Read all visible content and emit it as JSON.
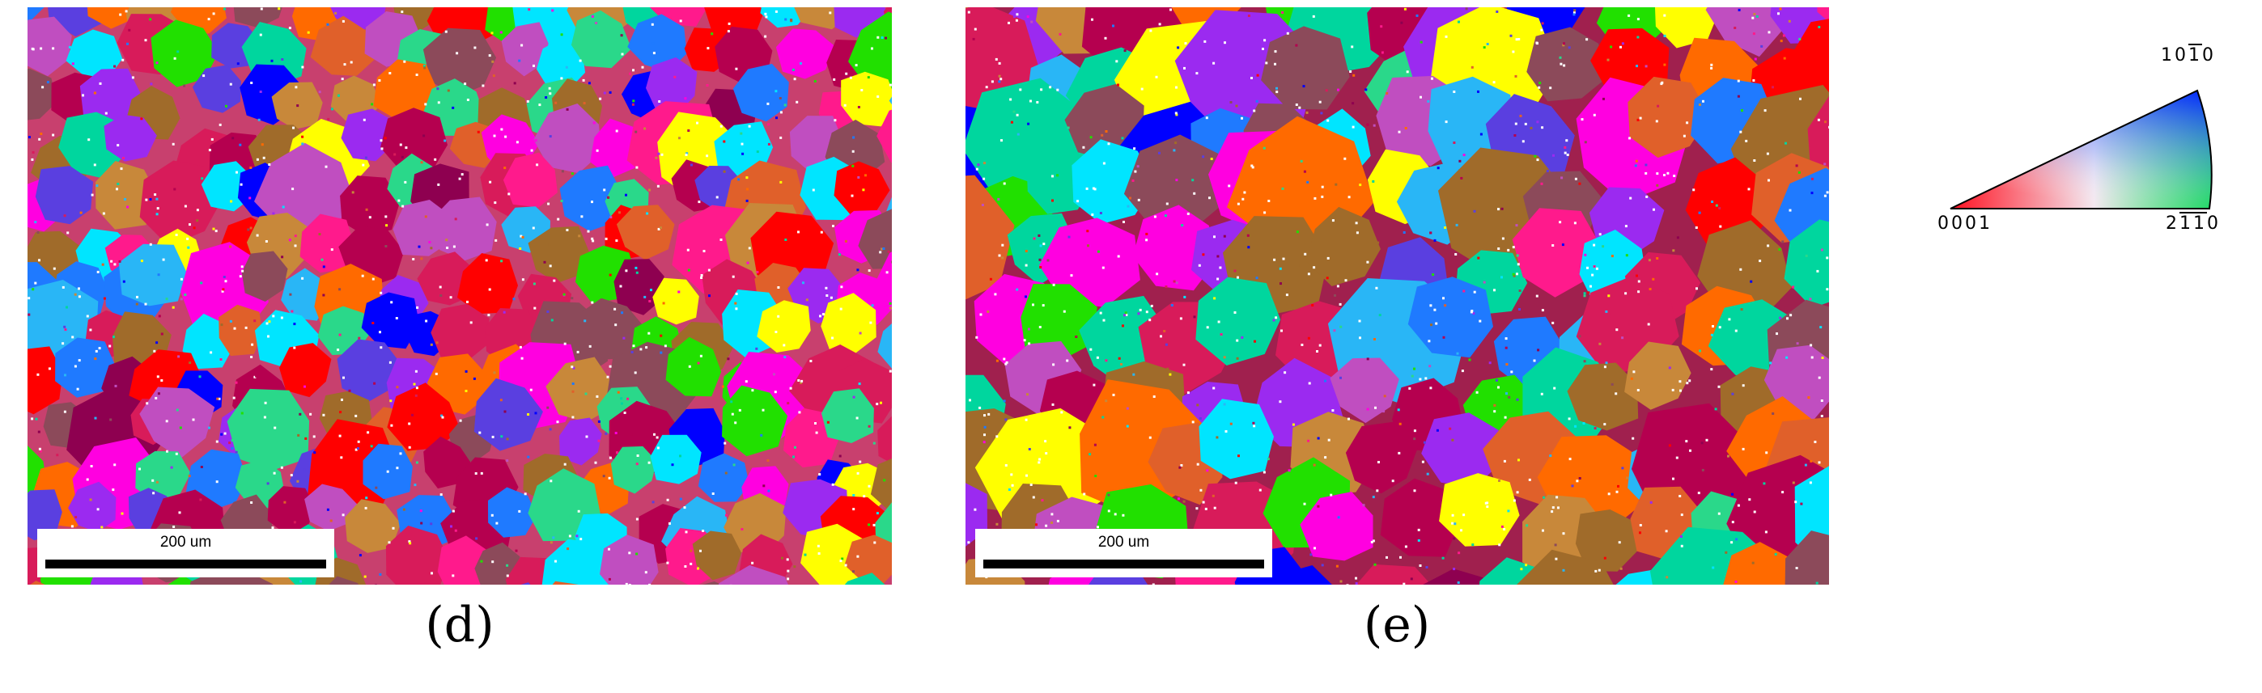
{
  "figure": {
    "panels": [
      {
        "id": "d",
        "label": "(d)",
        "scale_bar_text": "200 um",
        "description": "EBSD inverse pole figure orientation map"
      },
      {
        "id": "e",
        "label": "(e)",
        "scale_bar_text": "200 um",
        "description": "EBSD inverse pole figure orientation map"
      }
    ],
    "legend": {
      "corner_0001": "0001",
      "corner_2110": "2110",
      "corner_1010": "1010",
      "overbar_note": "digits 2 of 2110 has bars over '1' '1' and 1010 has bar over the second '1'",
      "colors": {
        "red_corner": "#ff0000",
        "green_corner": "#00e050",
        "blue_corner": "#0030ff"
      }
    },
    "grain_palette": [
      "#ff1a8c",
      "#00e5ff",
      "#c8883a",
      "#9b2af0",
      "#b5004f",
      "#1f7aff",
      "#ff0000",
      "#00d69e",
      "#ffff00",
      "#21e000",
      "#ff00e0",
      "#8c4a5a",
      "#0000ff",
      "#e0602a",
      "#5a3fe0",
      "#a06b2a",
      "#ff6a00",
      "#d81b5a",
      "#29b6f6",
      "#8e0050",
      "#c04ec0",
      "#2ad88a"
    ]
  }
}
